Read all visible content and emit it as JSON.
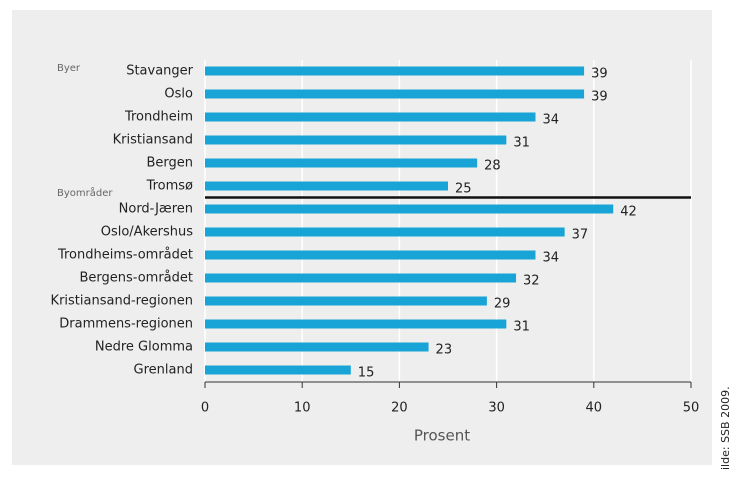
{
  "chart_data": {
    "type": "barh",
    "groups": [
      "Byer",
      "Byområder"
    ],
    "categories": [
      "Stavanger",
      "Oslo",
      "Trondheim",
      "Kristiansand",
      "Bergen",
      "Tromsø",
      "Nord-Jæren",
      "Oslo/Akershus",
      "Trondheims-området",
      "Bergens-området",
      "Kristiansand-regionen",
      "Drammens-regionen",
      "Nedre Glomma",
      "Grenland"
    ],
    "values": [
      39,
      39,
      34,
      31,
      28,
      25,
      42,
      37,
      34,
      32,
      29,
      31,
      23,
      15
    ],
    "color": "#18a4d6",
    "xlim": [
      0,
      50
    ],
    "xticks": [
      0,
      10,
      20,
      30,
      40,
      50
    ],
    "xlabel": "Prosent",
    "grid": true,
    "source": "ilde: SSB 2009."
  }
}
